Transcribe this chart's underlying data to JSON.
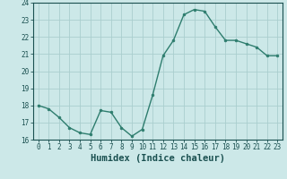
{
  "x": [
    0,
    1,
    2,
    3,
    4,
    5,
    6,
    7,
    8,
    9,
    10,
    11,
    12,
    13,
    14,
    15,
    16,
    17,
    18,
    19,
    20,
    21,
    22,
    23
  ],
  "y": [
    18.0,
    17.8,
    17.3,
    16.7,
    16.4,
    16.3,
    17.7,
    17.6,
    16.7,
    16.2,
    16.6,
    18.6,
    20.9,
    21.8,
    23.3,
    23.6,
    23.5,
    22.6,
    21.8,
    21.8,
    21.6,
    21.4,
    20.9,
    20.9
  ],
  "xlabel": "Humidex (Indice chaleur)",
  "line_color": "#2e7d6e",
  "marker_size": 2.0,
  "linewidth": 1.0,
  "bg_color": "#cce8e8",
  "grid_color": "#aacece",
  "ylim": [
    16,
    24
  ],
  "xlim": [
    -0.5,
    23.5
  ],
  "yticks": [
    16,
    17,
    18,
    19,
    20,
    21,
    22,
    23,
    24
  ],
  "xticks": [
    0,
    1,
    2,
    3,
    4,
    5,
    6,
    7,
    8,
    9,
    10,
    11,
    12,
    13,
    14,
    15,
    16,
    17,
    18,
    19,
    20,
    21,
    22,
    23
  ],
  "tick_label_fontsize": 5.5,
  "xlabel_fontsize": 7.5
}
